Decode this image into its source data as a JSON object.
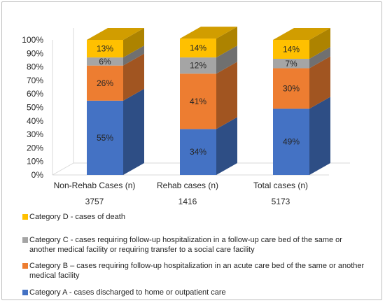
{
  "chart_data": {
    "type": "bar",
    "stacked": true,
    "three_d": true,
    "categories": [
      "Non-Rehab Cases (n)",
      "Rehab cases (n)",
      "Total cases (n)"
    ],
    "counts": [
      "3757",
      "1416",
      "5173"
    ],
    "ylim": [
      0,
      100
    ],
    "y_ticks": [
      "0%",
      "10%",
      "20%",
      "30%",
      "40%",
      "50%",
      "60%",
      "70%",
      "80%",
      "90%",
      "100%"
    ],
    "grid": false,
    "legend_position": "bottom",
    "series": [
      {
        "name": "Category A - cases discharged to home or outpatient care",
        "color": "#4472c4",
        "values": [
          55,
          34,
          49
        ],
        "labels": [
          "55%",
          "34%",
          "49%"
        ]
      },
      {
        "name": "Category B – cases requiring follow-up hospitalization in an acute care bed of the same or another medical facility",
        "color": "#ed7d31",
        "values": [
          26,
          41,
          30
        ],
        "labels": [
          "26%",
          "41%",
          "30%"
        ]
      },
      {
        "name": "Category C - cases requiring follow-up hospitalization in a follow-up care bed of the same or another medical facility or requiring transfer to a social care facility",
        "color": "#a5a5a5",
        "values": [
          6,
          12,
          7
        ],
        "labels": [
          "6%",
          "12%",
          "7%"
        ]
      },
      {
        "name": "Category D - cases of death",
        "color": "#ffc000",
        "values": [
          13,
          14,
          14
        ],
        "labels": [
          "13%",
          "14%",
          "14%"
        ]
      }
    ]
  }
}
